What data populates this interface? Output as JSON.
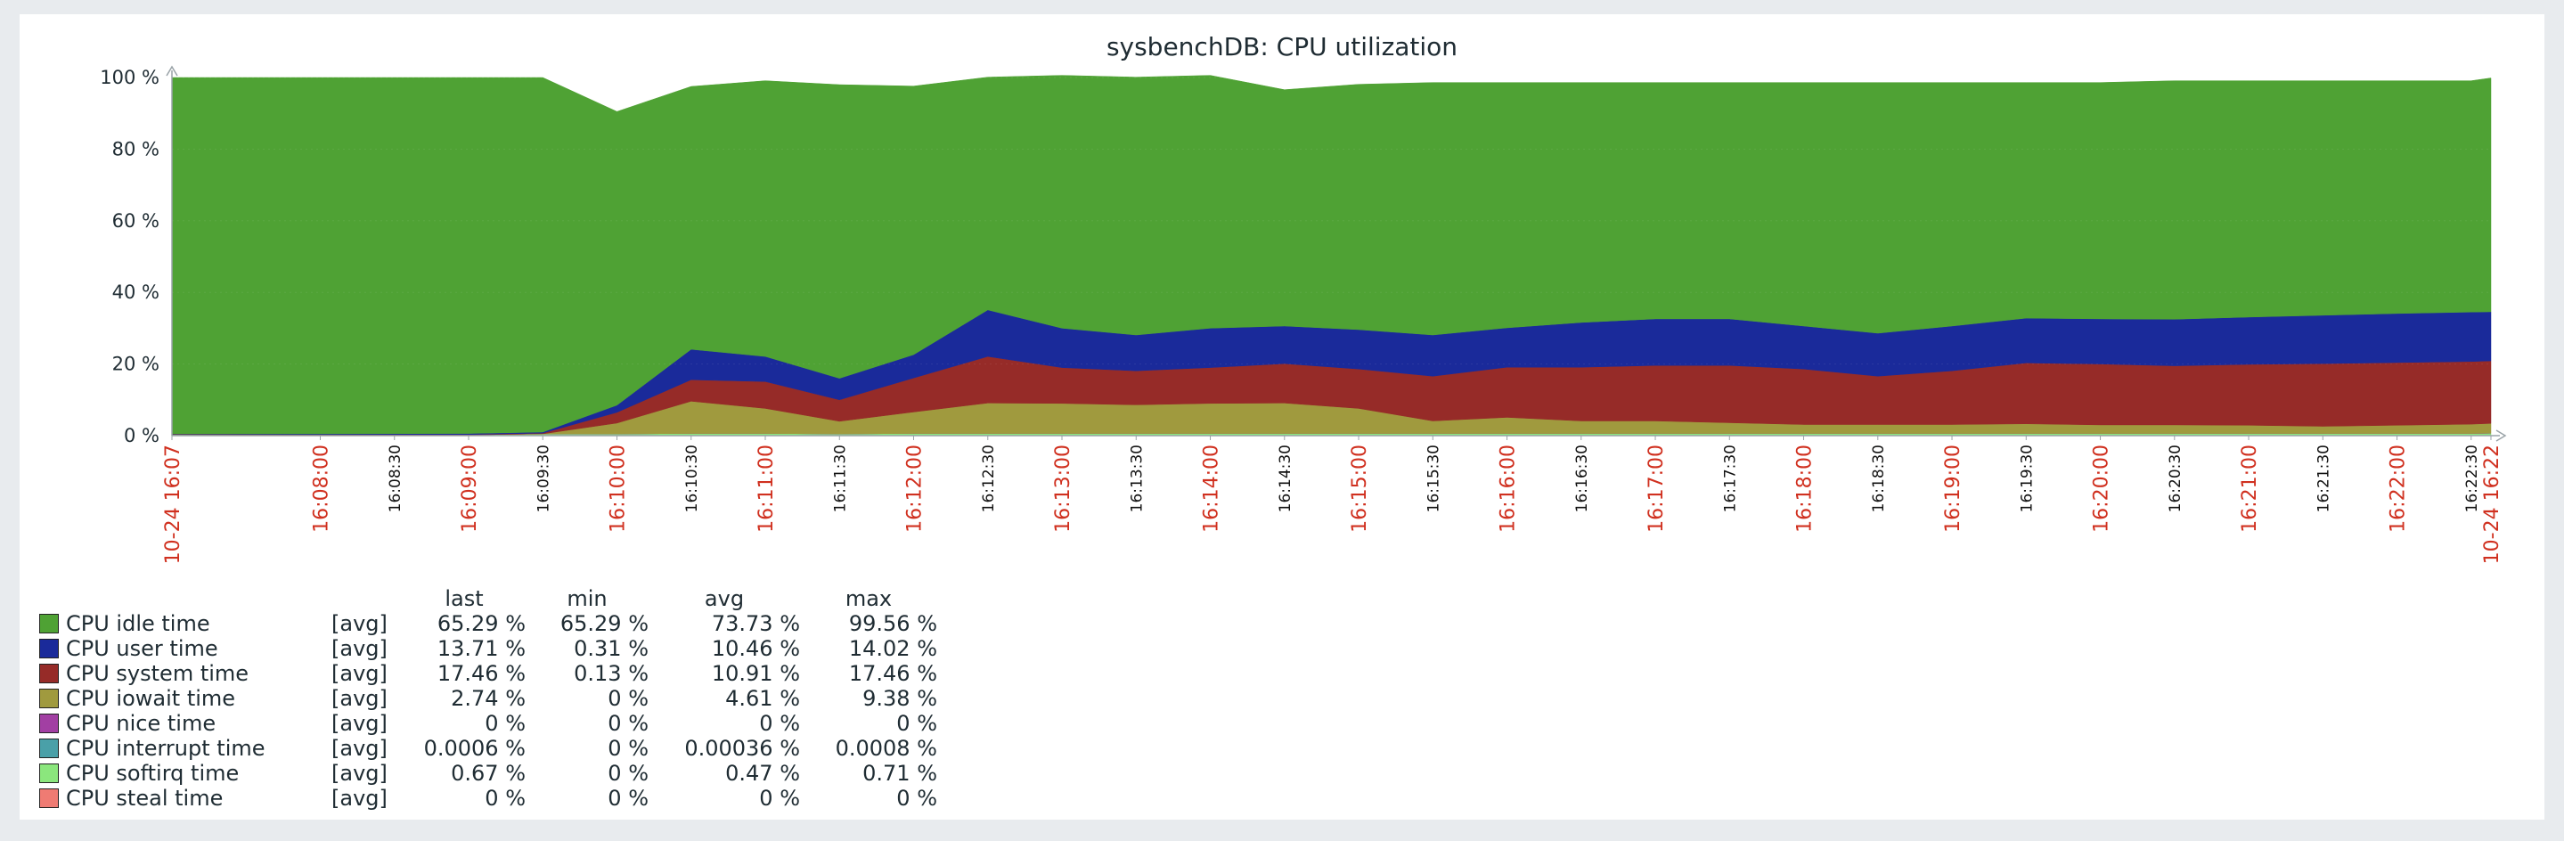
{
  "chart_data": {
    "type": "area",
    "stacked": true,
    "title": "sysbenchDB: CPU utilization",
    "ylim": [
      0,
      100
    ],
    "y_ticks": [
      "0 %",
      "20 %",
      "40 %",
      "60 %",
      "80 %",
      "100 %"
    ],
    "grid": true,
    "x": [
      "16:07:00",
      "16:08:00",
      "16:09:00",
      "16:09:30",
      "16:10:00",
      "16:10:30",
      "16:11:00",
      "16:11:30",
      "16:12:00",
      "16:12:30",
      "16:13:00",
      "16:13:30",
      "16:14:00",
      "16:14:30",
      "16:15:00",
      "16:15:30",
      "16:16:00",
      "16:16:30",
      "16:17:00",
      "16:17:30",
      "16:18:00",
      "16:18:30",
      "16:19:00",
      "16:19:30",
      "16:20:00",
      "16:20:30",
      "16:21:00",
      "16:21:30",
      "16:22:00",
      "16:22:30",
      "16:22:38"
    ],
    "x_tick_labels": [
      {
        "time": "16:07:00",
        "label": "10-24 16:07",
        "color": "#d0301f"
      },
      {
        "time": "16:08:00",
        "label": "16:08:00",
        "color": "#d0301f"
      },
      {
        "time": "16:08:30",
        "label": "16:08:30",
        "color": "#111111"
      },
      {
        "time": "16:09:00",
        "label": "16:09:00",
        "color": "#d0301f"
      },
      {
        "time": "16:09:30",
        "label": "16:09:30",
        "color": "#111111"
      },
      {
        "time": "16:10:00",
        "label": "16:10:00",
        "color": "#d0301f"
      },
      {
        "time": "16:10:30",
        "label": "16:10:30",
        "color": "#111111"
      },
      {
        "time": "16:11:00",
        "label": "16:11:00",
        "color": "#d0301f"
      },
      {
        "time": "16:11:30",
        "label": "16:11:30",
        "color": "#111111"
      },
      {
        "time": "16:12:00",
        "label": "16:12:00",
        "color": "#d0301f"
      },
      {
        "time": "16:12:30",
        "label": "16:12:30",
        "color": "#111111"
      },
      {
        "time": "16:13:00",
        "label": "16:13:00",
        "color": "#d0301f"
      },
      {
        "time": "16:13:30",
        "label": "16:13:30",
        "color": "#111111"
      },
      {
        "time": "16:14:00",
        "label": "16:14:00",
        "color": "#d0301f"
      },
      {
        "time": "16:14:30",
        "label": "16:14:30",
        "color": "#111111"
      },
      {
        "time": "16:15:00",
        "label": "16:15:00",
        "color": "#d0301f"
      },
      {
        "time": "16:15:30",
        "label": "16:15:30",
        "color": "#111111"
      },
      {
        "time": "16:16:00",
        "label": "16:16:00",
        "color": "#d0301f"
      },
      {
        "time": "16:16:30",
        "label": "16:16:30",
        "color": "#111111"
      },
      {
        "time": "16:17:00",
        "label": "16:17:00",
        "color": "#d0301f"
      },
      {
        "time": "16:17:30",
        "label": "16:17:30",
        "color": "#111111"
      },
      {
        "time": "16:18:00",
        "label": "16:18:00",
        "color": "#d0301f"
      },
      {
        "time": "16:18:30",
        "label": "16:18:30",
        "color": "#111111"
      },
      {
        "time": "16:19:00",
        "label": "16:19:00",
        "color": "#d0301f"
      },
      {
        "time": "16:19:30",
        "label": "16:19:30",
        "color": "#111111"
      },
      {
        "time": "16:20:00",
        "label": "16:20:00",
        "color": "#d0301f"
      },
      {
        "time": "16:20:30",
        "label": "16:20:30",
        "color": "#111111"
      },
      {
        "time": "16:21:00",
        "label": "16:21:00",
        "color": "#d0301f"
      },
      {
        "time": "16:21:30",
        "label": "16:21:30",
        "color": "#111111"
      },
      {
        "time": "16:22:00",
        "label": "16:22:00",
        "color": "#d0301f"
      },
      {
        "time": "16:22:30",
        "label": "16:22:30",
        "color": "#111111"
      },
      {
        "time": "16:22:38",
        "label": "10-24 16:22",
        "color": "#d0301f"
      }
    ],
    "series": [
      {
        "name": "CPU idle time",
        "color": "#4fa234",
        "values": [
          99.5,
          99.5,
          99.4,
          99.0,
          82.0,
          73.4,
          77.0,
          82.0,
          75.0,
          65.0,
          70.6,
          72.0,
          70.6,
          66.0,
          68.5,
          70.5,
          68.5,
          67.0,
          66.0,
          66.0,
          68.0,
          70.0,
          68.0,
          65.8,
          66.0,
          66.6,
          66.0,
          65.5,
          65.0,
          64.6,
          65.29
        ]
      },
      {
        "name": "CPU user time",
        "color": "#1a2a9a",
        "values": [
          0.1,
          0.2,
          0.3,
          0.3,
          2.0,
          8.5,
          7.0,
          6.0,
          6.5,
          13.0,
          11.0,
          10.0,
          11.0,
          10.5,
          11.0,
          11.5,
          11.0,
          12.5,
          13.0,
          13.0,
          12.0,
          12.0,
          12.5,
          12.5,
          12.6,
          13.0,
          13.2,
          13.5,
          13.7,
          13.8,
          13.71
        ]
      },
      {
        "name": "CPU system time",
        "color": "#962b28",
        "values": [
          0.1,
          0.1,
          0.1,
          0.2,
          3.0,
          6.0,
          7.5,
          6.0,
          9.5,
          13.0,
          10.0,
          9.5,
          10.0,
          11.0,
          11.0,
          12.5,
          14.0,
          15.0,
          15.5,
          16.0,
          15.5,
          13.5,
          15.0,
          17.0,
          17.0,
          16.5,
          17.0,
          17.5,
          17.5,
          17.5,
          17.46
        ]
      },
      {
        "name": "CPU iowait time",
        "color": "#a09a3e",
        "values": [
          0.0,
          0.0,
          0.0,
          0.0,
          3.0,
          9.0,
          7.0,
          3.5,
          6.0,
          8.5,
          8.4,
          8.0,
          8.4,
          8.5,
          7.0,
          3.5,
          4.5,
          3.5,
          3.5,
          3.0,
          2.5,
          2.5,
          2.5,
          2.7,
          2.4,
          2.4,
          2.3,
          2.0,
          2.3,
          2.6,
          2.74
        ]
      },
      {
        "name": "CPU nice time",
        "color": "#a23fa3",
        "values": [
          0,
          0,
          0,
          0,
          0,
          0,
          0,
          0,
          0,
          0,
          0,
          0,
          0,
          0,
          0,
          0,
          0,
          0,
          0,
          0,
          0,
          0,
          0,
          0,
          0,
          0,
          0,
          0,
          0,
          0,
          0
        ]
      },
      {
        "name": "CPU interrupt time",
        "color": "#4aa0a8",
        "values": [
          0,
          0,
          0,
          0,
          0,
          0,
          0,
          0,
          0,
          0,
          0,
          0,
          0,
          0,
          0,
          0,
          0,
          0,
          0,
          0,
          0,
          0,
          0,
          0,
          0,
          0,
          0,
          0,
          0,
          0,
          0
        ]
      },
      {
        "name": "CPU softirq time",
        "color": "#8be67d",
        "values": [
          0.3,
          0.2,
          0.2,
          0.5,
          0.5,
          0.6,
          0.6,
          0.5,
          0.6,
          0.6,
          0.6,
          0.6,
          0.6,
          0.6,
          0.6,
          0.6,
          0.6,
          0.6,
          0.6,
          0.6,
          0.6,
          0.6,
          0.6,
          0.6,
          0.6,
          0.6,
          0.6,
          0.6,
          0.6,
          0.6,
          0.67
        ]
      },
      {
        "name": "CPU steal time",
        "color": "#ef7b73",
        "values": [
          0,
          0,
          0,
          0,
          0,
          0,
          0,
          0,
          0,
          0,
          0,
          0,
          0,
          0,
          0,
          0,
          0,
          0,
          0,
          0,
          0,
          0,
          0,
          0,
          0,
          0,
          0,
          0,
          0,
          0,
          0
        ]
      }
    ],
    "legend": {
      "columns": {
        "last": "last",
        "min": "min",
        "avg": "avg",
        "max": "max"
      },
      "rows": [
        {
          "name": "CPU idle time",
          "fn": "[avg]",
          "last": "65.29 %",
          "min": "65.29 %",
          "avg": "73.73 %",
          "max": "99.56 %",
          "color": "#4fa234"
        },
        {
          "name": "CPU user time",
          "fn": "[avg]",
          "last": "13.71 %",
          "min": "0.31 %",
          "avg": "10.46 %",
          "max": "14.02 %",
          "color": "#1a2a9a"
        },
        {
          "name": "CPU system time",
          "fn": "[avg]",
          "last": "17.46 %",
          "min": "0.13 %",
          "avg": "10.91 %",
          "max": "17.46 %",
          "color": "#962b28"
        },
        {
          "name": "CPU iowait time",
          "fn": "[avg]",
          "last": "2.74 %",
          "min": "0 %",
          "avg": "4.61 %",
          "max": "9.38 %",
          "color": "#a09a3e"
        },
        {
          "name": "CPU nice time",
          "fn": "[avg]",
          "last": "0 %",
          "min": "0 %",
          "avg": "0 %",
          "max": "0 %",
          "color": "#a23fa3"
        },
        {
          "name": "CPU interrupt time",
          "fn": "[avg]",
          "last": "0.0006 %",
          "min": "0 %",
          "avg": "0.00036 %",
          "max": "0.0008 %",
          "color": "#4aa0a8"
        },
        {
          "name": "CPU softirq time",
          "fn": "[avg]",
          "last": "0.67 %",
          "min": "0 %",
          "avg": "0.47 %",
          "max": "0.71 %",
          "color": "#8be67d"
        },
        {
          "name": "CPU steal time",
          "fn": "[avg]",
          "last": "0 %",
          "min": "0 %",
          "avg": "0 %",
          "max": "0 %",
          "color": "#ef7b73"
        }
      ]
    }
  }
}
